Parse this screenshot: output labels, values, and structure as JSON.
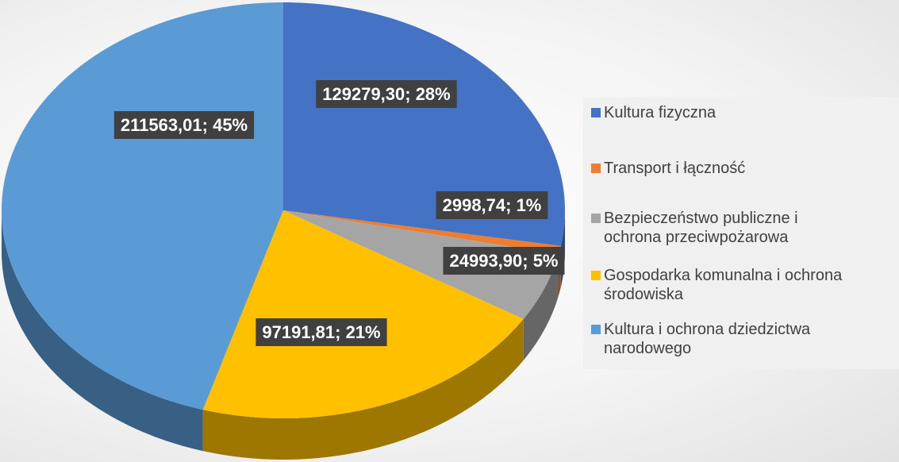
{
  "chart_data": {
    "type": "pie3d",
    "series": [
      {
        "name": "Kultura fizyczna",
        "color": "#4472c4",
        "values": [
          129279.3
        ],
        "value_labels": [
          "129279,30; 28%"
        ]
      },
      {
        "name": "Transport i łączność",
        "color": "#ed7d31",
        "values": [
          2998.74
        ],
        "value_labels": [
          "2998,74; 1%"
        ]
      },
      {
        "name": "Bezpieczeństwo publiczne i ochrona przeciwpożarowa",
        "color": "#a5a5a5",
        "values": [
          24993.9
        ],
        "value_labels": [
          "24993,90; 5%"
        ]
      },
      {
        "name": "Gospodarka komunalna i ochrona środowiska",
        "color": "#ffc000",
        "values": [
          97191.81
        ],
        "value_labels": [
          "97191,81; 21%"
        ]
      },
      {
        "name": "Kultura i ochrona dziedzictwa narodowego",
        "color": "#5b9bd5",
        "values": [
          211563.01
        ],
        "value_labels": [
          "211563,01; 45%"
        ]
      }
    ],
    "legend": "right"
  }
}
